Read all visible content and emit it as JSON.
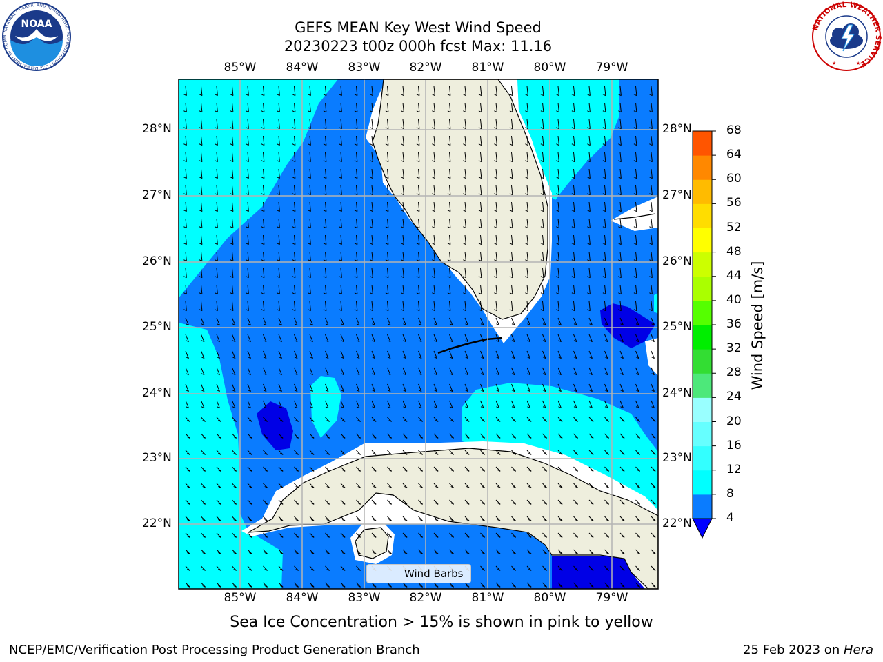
{
  "title": {
    "line1": "GEFS MEAN Key West Wind Speed",
    "line2": "20230223 t00z 000h fcst   Max: 11.16"
  },
  "map": {
    "lat_labels": [
      "28°N",
      "27°N",
      "26°N",
      "25°N",
      "24°N",
      "23°N",
      "22°N"
    ],
    "lon_labels": [
      "85°W",
      "84°W",
      "83°W",
      "82°W",
      "81°W",
      "80°W",
      "79°W"
    ],
    "legend_label": "Wind Barbs",
    "colors": {
      "ocean_deep": "#0a7cff",
      "ocean_light": "#00ffff",
      "ocean_dark": "#0000e6",
      "land": "#eeeedd",
      "grid": "#b0b0b0"
    }
  },
  "colorbar": {
    "label": "Wind Speed [m/s]",
    "ticks": [
      "4",
      "8",
      "12",
      "16",
      "20",
      "24",
      "28",
      "32",
      "36",
      "40",
      "44",
      "48",
      "52",
      "56",
      "60",
      "64",
      "68"
    ],
    "colors": [
      "#0a7cff",
      "#00ffff",
      "#33ffff",
      "#66ffff",
      "#99ffff",
      "#4de87a",
      "#33dd33",
      "#00ee00",
      "#55ff00",
      "#aaff00",
      "#ccff00",
      "#ffff00",
      "#ffdd00",
      "#ffbb00",
      "#ff8800",
      "#ff5500",
      "#ff2200",
      "#ff0000"
    ],
    "under_color": "#0000ff"
  },
  "subtitle": "Sea Ice Concentration > 15% is shown in pink to yellow",
  "footer": {
    "left": "NCEP/EMC/Verification Post Processing Product Generation Branch",
    "right_prefix": "25 Feb 2023 on ",
    "right_machine": "Hera"
  },
  "logos": {
    "noaa": "NOAA",
    "noaa_ring": "NATIONAL OCEANIC AND ATMOSPHERIC ADMINISTRATION · U.S. DEPARTMENT OF COMMERCE",
    "nws_ring": "NATIONAL WEATHER SERVICE"
  }
}
